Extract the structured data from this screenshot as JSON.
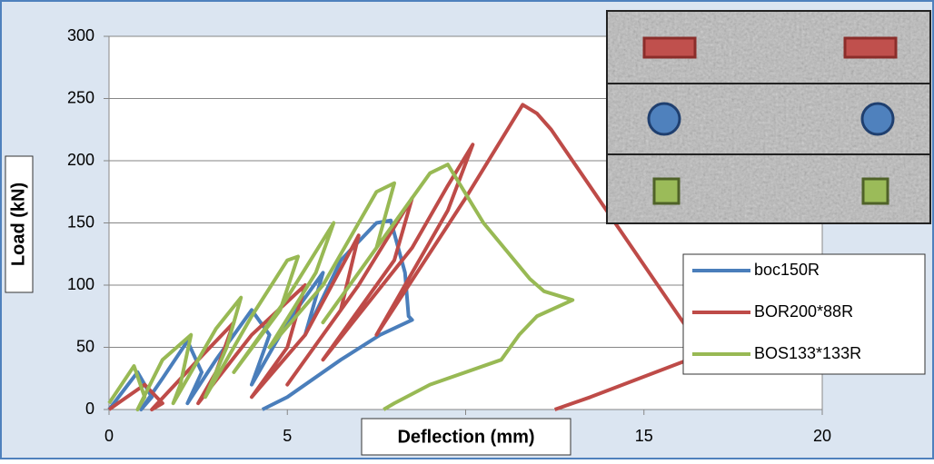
{
  "chart_data": {
    "type": "line",
    "x_label": "Deflection (mm)",
    "y_label": "Load (kN)",
    "xlim": [
      0,
      20
    ],
    "xticks": [
      0,
      5,
      10,
      15,
      20
    ],
    "ylim": [
      0,
      300
    ],
    "yticks": [
      0,
      50,
      100,
      150,
      200,
      250,
      300
    ],
    "legend": "lower right",
    "series": [
      {
        "name": "boc150R",
        "color": "#4a7ebb",
        "x": [
          0,
          0.8,
          1.2,
          0.9,
          1.5,
          2.2,
          2.6,
          2.2,
          3,
          4,
          4.5,
          4,
          5,
          6,
          5.5,
          6.5,
          7.5,
          7.9,
          8.3,
          8.4,
          8.5,
          7.6,
          6.5,
          5,
          4.3
        ],
        "values": [
          0,
          30,
          10,
          0,
          25,
          55,
          30,
          5,
          40,
          80,
          60,
          20,
          70,
          110,
          60,
          120,
          150,
          152,
          110,
          75,
          72,
          60,
          40,
          10,
          0
        ]
      },
      {
        "name": "BOR200*88R",
        "color": "#be4b48",
        "x": [
          0,
          1,
          1.5,
          1.2,
          2.5,
          3.5,
          3,
          2.5,
          4,
          5.5,
          5,
          4,
          5.5,
          7,
          6.5,
          5,
          7,
          8.5,
          8,
          6,
          8.5,
          9.5,
          10.2,
          9.5,
          7.5,
          10,
          11.6,
          12,
          12.4,
          16.7,
          13.5,
          12.5
        ],
        "values": [
          0,
          20,
          5,
          0,
          40,
          70,
          30,
          5,
          60,
          100,
          50,
          10,
          60,
          140,
          80,
          20,
          100,
          170,
          120,
          40,
          130,
          180,
          213,
          160,
          60,
          170,
          245,
          238,
          225,
          45,
          10,
          0
        ]
      },
      {
        "name": "BOS133*133R",
        "color": "#98b954",
        "x": [
          0,
          0.7,
          1,
          0.8,
          1.5,
          2.3,
          2,
          1.8,
          3,
          3.7,
          3.3,
          2.7,
          4,
          5,
          5.3,
          4.8,
          3.5,
          5,
          6.3,
          5.8,
          4.5,
          6,
          7.5,
          8,
          7.5,
          6,
          8,
          9,
          9.5,
          10.5,
          11.8,
          12.2,
          13,
          12,
          11.5,
          11,
          9,
          8,
          7.7
        ],
        "values": [
          5,
          35,
          10,
          0,
          40,
          60,
          20,
          5,
          65,
          90,
          50,
          10,
          75,
          120,
          123,
          80,
          30,
          90,
          150,
          110,
          50,
          100,
          175,
          182,
          130,
          70,
          150,
          190,
          197,
          150,
          105,
          95,
          88,
          75,
          60,
          40,
          20,
          5,
          0
        ]
      }
    ]
  }
}
